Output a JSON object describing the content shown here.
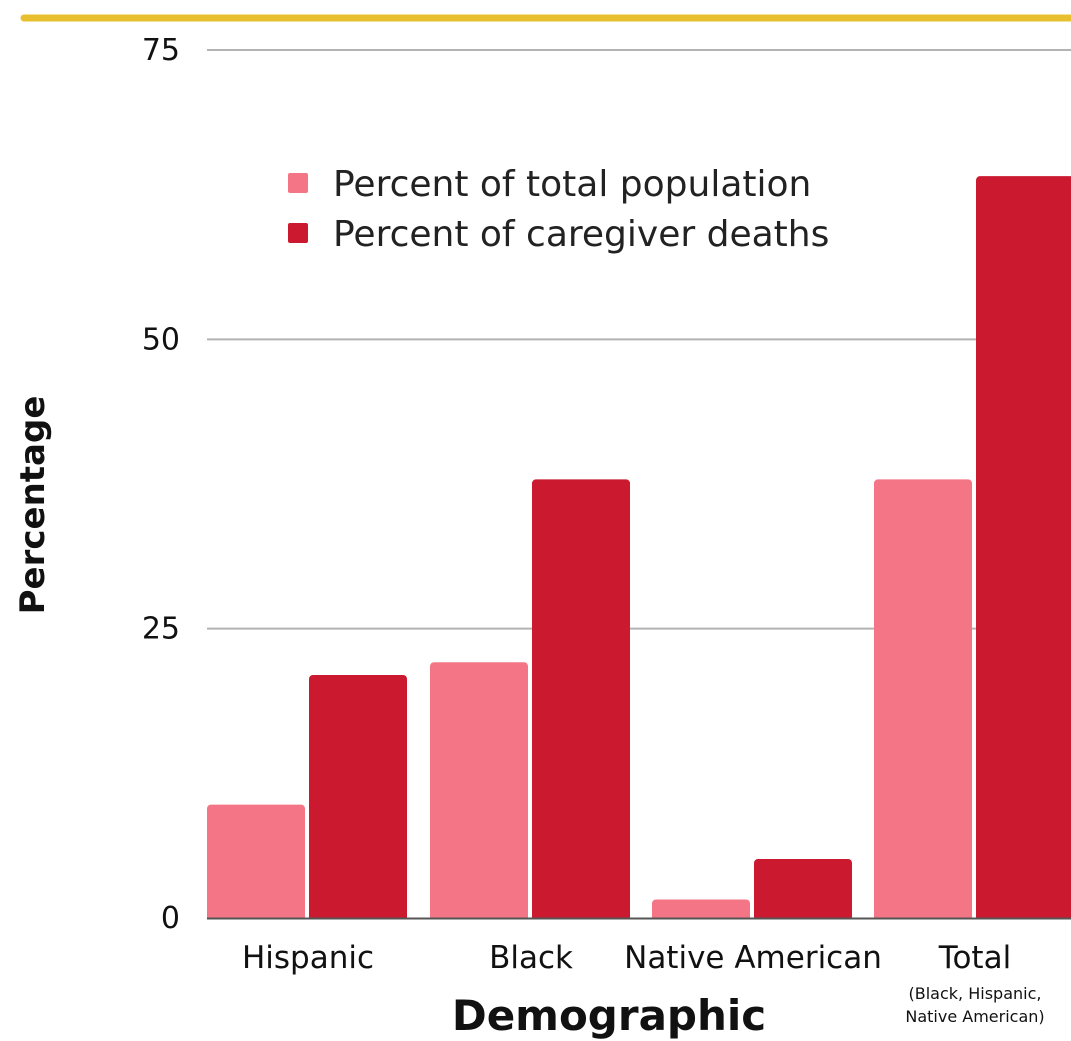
{
  "chart_data": {
    "type": "bar",
    "categories": [
      "Hispanic",
      "Black",
      "Native American",
      "Total"
    ],
    "category_sublabels": [
      "",
      "",
      "",
      "(Black, Hispanic,\nNative American)"
    ],
    "series": [
      {
        "name": "Percent of total population",
        "color": "#f47585",
        "values": [
          9.8,
          22.1,
          1.6,
          37.9
        ]
      },
      {
        "name": "Percent of caregiver deaths",
        "color": "#cb1a30",
        "values": [
          21.0,
          37.9,
          5.1,
          64.1
        ]
      }
    ],
    "xlabel": "Demographic",
    "ylabel": "Percentage",
    "ylim": [
      0,
      75
    ],
    "yticks": [
      0,
      25,
      50,
      75
    ],
    "grid": true,
    "legend_position": "top-center"
  },
  "header_rule_color": "#e8bf2e",
  "gridline_color": "#b3b3b3"
}
